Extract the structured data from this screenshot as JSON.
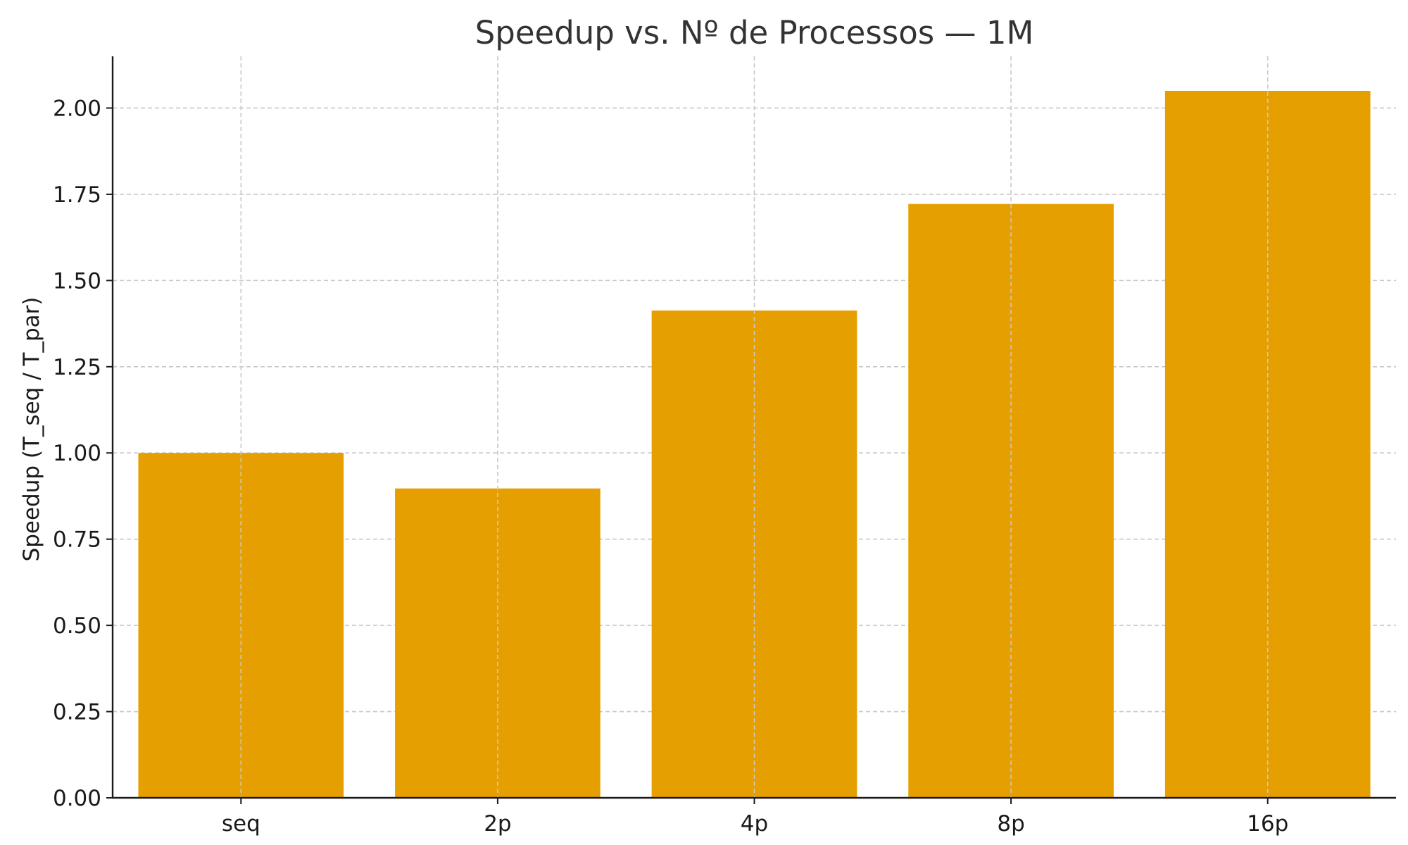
{
  "chart_data": {
    "type": "bar",
    "title": "Speedup vs. Nº de Processos — 1M",
    "xlabel": "",
    "ylabel": "Speedup (T_seq / T_par)",
    "categories": [
      "seq",
      "2p",
      "4p",
      "8p",
      "16p"
    ],
    "values": [
      1.0,
      0.897,
      1.413,
      1.722,
      2.05
    ],
    "ylim": [
      0,
      2.15
    ],
    "yticks": [
      0.0,
      0.25,
      0.5,
      0.75,
      1.0,
      1.25,
      1.5,
      1.75,
      2.0
    ],
    "ytick_labels": [
      "0.00",
      "0.25",
      "0.50",
      "0.75",
      "1.00",
      "1.25",
      "1.50",
      "1.75",
      "2.00"
    ],
    "grid": true,
    "bar_color": "#E69F00"
  }
}
